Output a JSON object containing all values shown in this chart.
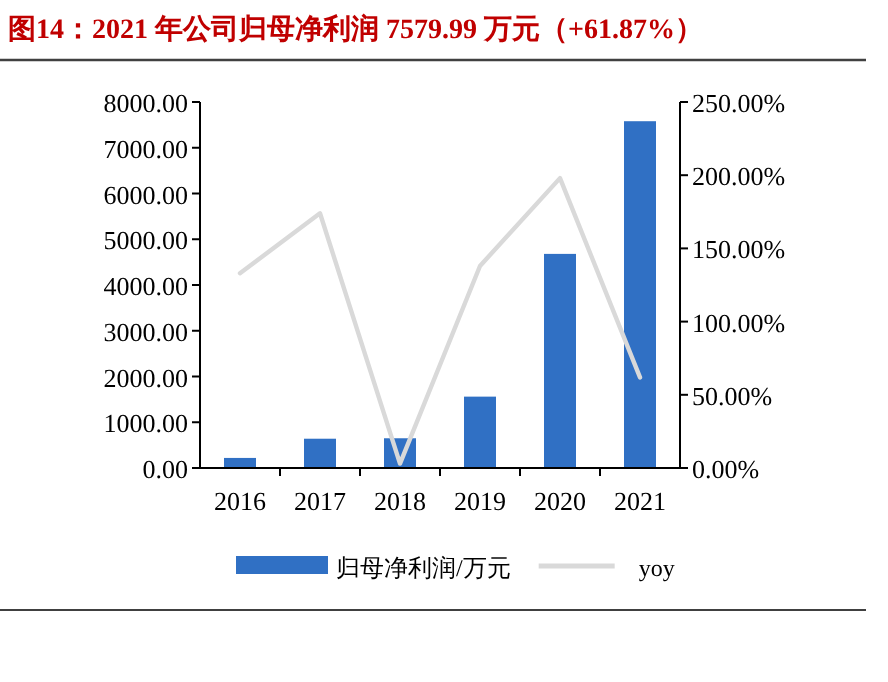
{
  "chart_data": {
    "type": "bar",
    "title": "图14：2021 年公司归母净利润 7579.99 万元（+61.87%）",
    "categories": [
      "2016",
      "2017",
      "2018",
      "2019",
      "2020",
      "2021"
    ],
    "series": [
      {
        "name": "归母净利润/万元",
        "color": "#3070c4",
        "values": [
          220,
          640,
          650,
          1560,
          4680,
          7579.99
        ]
      },
      {
        "name": "yoy",
        "color": "#d9d9d9",
        "type": "line",
        "axis": "y2",
        "values": [
          133,
          174,
          3,
          138,
          198,
          61.87
        ]
      }
    ],
    "ylim": [
      0,
      8000
    ],
    "yticks": [
      {
        "value": 0,
        "label": "0.00"
      },
      {
        "value": 1000,
        "label": "1000.00"
      },
      {
        "value": 2000,
        "label": "2000.00"
      },
      {
        "value": 3000,
        "label": "3000.00"
      },
      {
        "value": 4000,
        "label": "4000.00"
      },
      {
        "value": 5000,
        "label": "5000.00"
      },
      {
        "value": 6000,
        "label": "6000.00"
      },
      {
        "value": 7000,
        "label": "7000.00"
      },
      {
        "value": 8000,
        "label": "8000.00"
      }
    ],
    "y2lim": [
      0,
      250
    ],
    "y2ticks": [
      {
        "value": 0,
        "label": "0.00%"
      },
      {
        "value": 50,
        "label": "50.00%"
      },
      {
        "value": 100,
        "label": "100.00%"
      },
      {
        "value": 150,
        "label": "150.00%"
      },
      {
        "value": 200,
        "label": "200.00%"
      },
      {
        "value": 250,
        "label": "250.00%"
      }
    ],
    "legend": "bottom",
    "grid": false,
    "marker": "none",
    "line_style": "solid"
  }
}
